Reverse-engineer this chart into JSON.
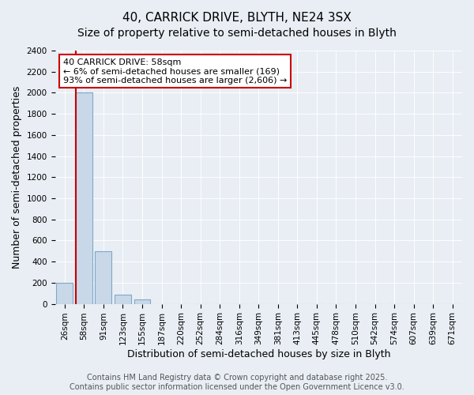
{
  "title": "40, CARRICK DRIVE, BLYTH, NE24 3SX",
  "subtitle": "Size of property relative to semi-detached houses in Blyth",
  "xlabel": "Distribution of semi-detached houses by size in Blyth",
  "ylabel": "Number of semi-detached properties",
  "annotation_title": "40 CARRICK DRIVE: 58sqm",
  "annotation_line1": "← 6% of semi-detached houses are smaller (169)",
  "annotation_line2": "93% of semi-detached houses are larger (2,606) →",
  "footer_line1": "Contains HM Land Registry data © Crown copyright and database right 2025.",
  "footer_line2": "Contains public sector information licensed under the Open Government Licence v3.0.",
  "bins": [
    "26sqm",
    "58sqm",
    "91sqm",
    "123sqm",
    "155sqm",
    "187sqm",
    "220sqm",
    "252sqm",
    "284sqm",
    "316sqm",
    "349sqm",
    "381sqm",
    "413sqm",
    "445sqm",
    "478sqm",
    "510sqm",
    "542sqm",
    "574sqm",
    "607sqm",
    "639sqm",
    "671sqm"
  ],
  "values": [
    200,
    2000,
    500,
    90,
    40,
    0,
    0,
    0,
    0,
    0,
    0,
    0,
    0,
    0,
    0,
    0,
    0,
    0,
    0,
    0,
    0
  ],
  "highlight_bin_index": 1,
  "bar_color": "#c8d8e8",
  "bar_edge_color": "#7fa8c8",
  "highlight_line_color": "#cc0000",
  "annotation_box_color": "#cc0000",
  "background_color": "#e8eef4",
  "ylim": [
    0,
    2400
  ],
  "yticks": [
    0,
    200,
    400,
    600,
    800,
    1000,
    1200,
    1400,
    1600,
    1800,
    2000,
    2200,
    2400
  ],
  "title_fontsize": 11,
  "subtitle_fontsize": 10,
  "xlabel_fontsize": 9,
  "ylabel_fontsize": 9,
  "tick_fontsize": 7.5,
  "footer_fontsize": 7,
  "annotation_fontsize": 8
}
